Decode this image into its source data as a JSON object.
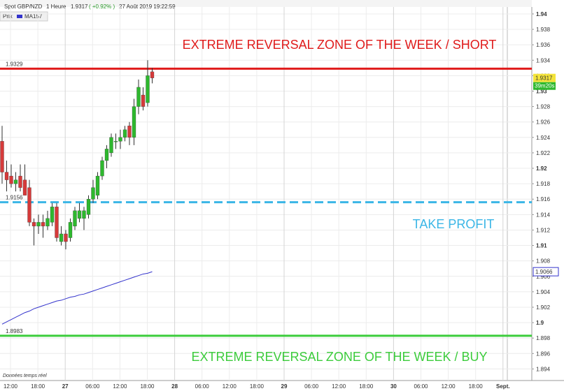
{
  "chart_data": {
    "type": "candlestick",
    "title": "Spot GBP/NZD",
    "interval": "1 Heure",
    "change": "( +0.92% )",
    "datetime": "27 Août 2019 19:22:59",
    "price_legend": "Prix",
    "footer": "Données temps réel",
    "countdown": "39m20s",
    "up_color": "#2eb82e",
    "down_color": "#d63a3a",
    "open": [
      1.9235,
      1.9195,
      1.919,
      1.918,
      1.919,
      1.9185,
      1.9175,
      1.913,
      1.9125,
      1.913,
      1.9125,
      1.913,
      1.915,
      1.9105,
      1.9115,
      1.911,
      1.9125,
      1.9135,
      1.9135,
      1.914,
      1.916,
      1.9165,
      1.919,
      1.921,
      1.922,
      1.9235,
      1.9235,
      1.924,
      1.9255,
      1.924,
      1.928,
      1.9295,
      1.9285,
      1.9325
    ],
    "high": [
      1.9255,
      1.921,
      1.9205,
      1.9195,
      1.9205,
      1.9205,
      1.9185,
      1.9135,
      1.914,
      1.914,
      1.9145,
      1.9155,
      1.9155,
      1.9125,
      1.912,
      1.9135,
      1.915,
      1.9155,
      1.915,
      1.9165,
      1.9185,
      1.9195,
      1.9215,
      1.923,
      1.9245,
      1.9245,
      1.925,
      1.9255,
      1.926,
      1.929,
      1.9315,
      1.9305,
      1.934,
      1.933
    ],
    "low": [
      1.918,
      1.917,
      1.9175,
      1.917,
      1.917,
      1.9165,
      1.9125,
      1.91,
      1.9115,
      1.911,
      1.912,
      1.9125,
      1.9105,
      1.91,
      1.9095,
      1.9105,
      1.912,
      1.913,
      1.912,
      1.9135,
      1.9155,
      1.916,
      1.9185,
      1.92,
      1.9215,
      1.9225,
      1.9225,
      1.9235,
      1.923,
      1.923,
      1.927,
      1.9275,
      1.928,
      1.931
    ],
    "close": [
      1.9195,
      1.9185,
      1.918,
      1.9185,
      1.9175,
      1.9165,
      1.913,
      1.9125,
      1.913,
      1.9125,
      1.9135,
      1.915,
      1.911,
      1.9115,
      1.9105,
      1.913,
      1.9145,
      1.9145,
      1.9145,
      1.916,
      1.9175,
      1.919,
      1.921,
      1.9225,
      1.924,
      1.9235,
      1.924,
      1.925,
      1.924,
      1.928,
      1.9305,
      1.928,
      1.932,
      1.9317
    ],
    "series": [
      {
        "name": "MA157",
        "color": "#3333cc",
        "values": [
          1.8998,
          1.9001,
          1.9004,
          1.9007,
          1.901,
          1.9013,
          1.9015,
          1.9018,
          1.902,
          1.9022,
          1.9024,
          1.9026,
          1.9028,
          1.9029,
          1.9031,
          1.9033,
          1.9034,
          1.9036,
          1.9037,
          1.9039,
          1.9041,
          1.9043,
          1.9045,
          1.9047,
          1.9049,
          1.9051,
          1.9053,
          1.9055,
          1.9057,
          1.9059,
          1.9061,
          1.9063,
          1.9064,
          1.9066
        ]
      }
    ],
    "levels": [
      {
        "value": 1.9329,
        "color": "#e01b1b",
        "dashed": false
      },
      {
        "value": 1.9156,
        "color": "#3bb6e6",
        "dashed": true
      },
      {
        "value": 1.8983,
        "color": "#3ccc3c",
        "dashed": false
      }
    ],
    "annotations": [
      {
        "text": "EXTREME REVERSAL ZONE OF THE WEEK  / SHORT",
        "color": "#e01b1b"
      },
      {
        "text": "TAKE PROFIT",
        "color": "#3bb6e6"
      },
      {
        "text": "EXTREME REVERSAL ZONE OF THE WEEK  / BUY",
        "color": "#3ccc3c"
      }
    ],
    "xtick_labels": [
      "12:00",
      "18:00",
      "27",
      "06:00",
      "12:00",
      "18:00",
      "28",
      "06:00",
      "12:00",
      "18:00",
      "29",
      "06:00",
      "12:00",
      "18:00",
      "30",
      "06:00",
      "12:00",
      "18:00",
      "Sept."
    ],
    "ylim": [
      1.8925,
      1.9409
    ],
    "yticks": [
      1.894,
      1.896,
      1.898,
      1.9,
      1.902,
      1.904,
      1.906,
      1.908,
      1.91,
      1.912,
      1.914,
      1.916,
      1.918,
      1.92,
      1.922,
      1.924,
      1.926,
      1.928,
      1.93,
      1.932,
      1.934,
      1.936,
      1.938,
      1.94
    ],
    "grid": true
  }
}
